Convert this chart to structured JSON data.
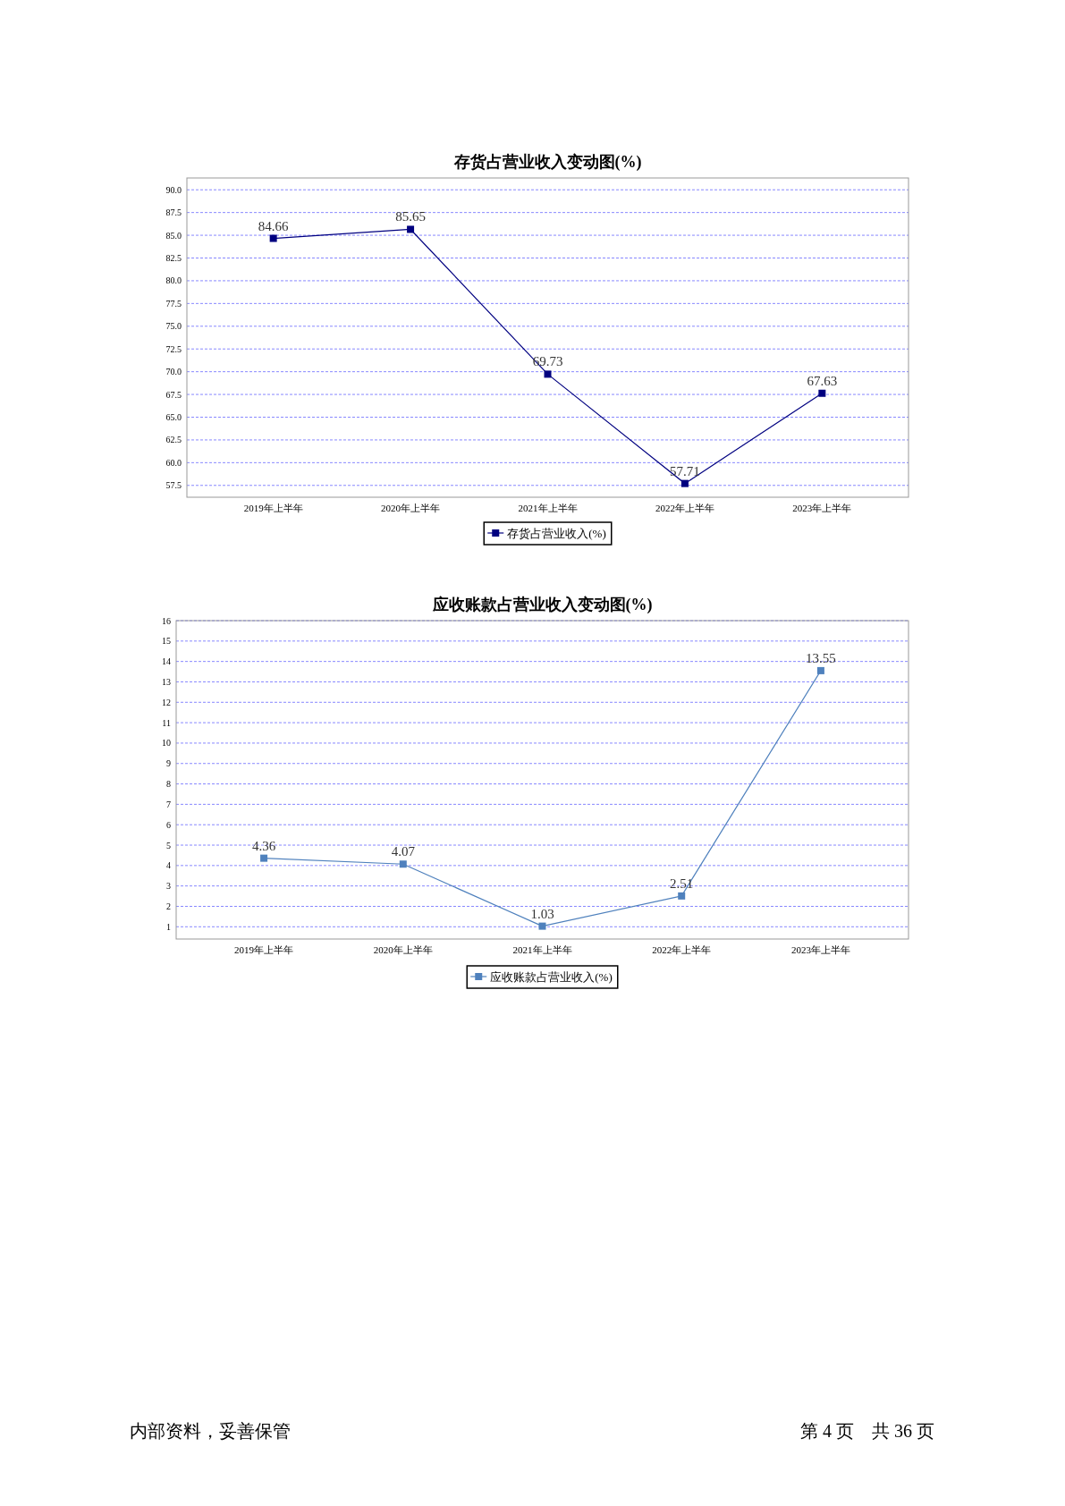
{
  "chart_data": [
    {
      "type": "line",
      "title": "存货占营业收入变动图(%)",
      "categories": [
        "2019年上半年",
        "2020年上半年",
        "2021年上半年",
        "2022年上半年",
        "2023年上半年"
      ],
      "series": [
        {
          "name": "存货占营业收入(%)",
          "color": "#000080",
          "values": [
            84.66,
            85.65,
            69.73,
            57.71,
            67.63
          ]
        }
      ],
      "ylim": [
        56.2,
        91.3
      ],
      "yticks": [
        {
          "value": 57.5,
          "label": "57.5"
        },
        {
          "value": 60,
          "label": "60.0"
        },
        {
          "value": 62.5,
          "label": "62.5"
        },
        {
          "value": 65,
          "label": "65.0"
        },
        {
          "value": 67.5,
          "label": "67.5"
        },
        {
          "value": 70,
          "label": "70.0"
        },
        {
          "value": 72.5,
          "label": "72.5"
        },
        {
          "value": 75,
          "label": "75.0"
        },
        {
          "value": 77.5,
          "label": "77.5"
        },
        {
          "value": 80,
          "label": "80.0"
        },
        {
          "value": 82.5,
          "label": "82.5"
        },
        {
          "value": 85,
          "label": "85.0"
        },
        {
          "value": 87.5,
          "label": "87.5"
        },
        {
          "value": 90,
          "label": "90.0"
        }
      ],
      "grid": "y",
      "marker": "square",
      "legend": "bottom",
      "data_labels": true
    },
    {
      "type": "line",
      "title": "应收账款占营业收入变动图(%)",
      "categories": [
        "2019年上半年",
        "2020年上半年",
        "2021年上半年",
        "2022年上半年",
        "2023年上半年"
      ],
      "series": [
        {
          "name": "应收账款占营业收入(%)",
          "color": "#4f81bd",
          "values": [
            4.36,
            4.07,
            1.03,
            2.51,
            13.55
          ]
        }
      ],
      "ylim": [
        0.4,
        16
      ],
      "yticks": [
        1,
        2,
        3,
        4,
        5,
        6,
        7,
        8,
        9,
        10,
        11,
        12,
        13,
        14,
        15,
        16
      ],
      "grid": "y",
      "marker": "square",
      "legend": "bottom",
      "data_labels": true,
      "annotations": [
        "内部资料，妥善保管",
        "第 4 页　共 36 页"
      ]
    }
  ]
}
